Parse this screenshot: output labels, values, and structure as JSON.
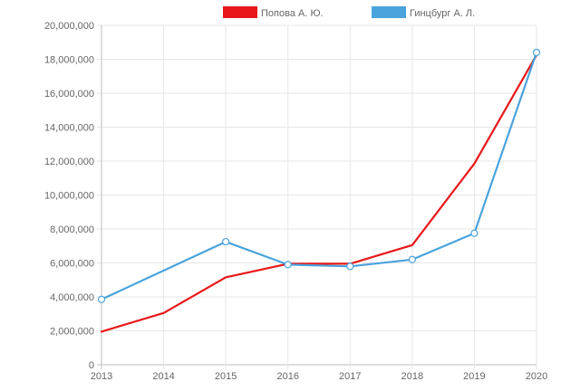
{
  "chart_data": {
    "type": "line",
    "x": [
      "2013",
      "2014",
      "2015",
      "2016",
      "2017",
      "2018",
      "2019",
      "2020"
    ],
    "ylim": [
      0,
      20000000
    ],
    "yticks": [
      "0",
      "2,000,000",
      "4,000,000",
      "6,000,000",
      "8,000,000",
      "10,000,000",
      "12,000,000",
      "14,000,000",
      "16,000,000",
      "18,000,000",
      "20,000,000"
    ],
    "grid": true,
    "legend_position": "top",
    "series": [
      {
        "name": "Попова А. Ю.",
        "color": "#e8171a",
        "values": [
          1950000,
          3050000,
          5150000,
          5950000,
          5950000,
          7050000,
          11850000,
          18250000
        ],
        "markers": false
      },
      {
        "name": "Гинцбург А. Л.",
        "color": "#4aa3dc",
        "values": [
          3850000,
          null,
          7250000,
          5900000,
          5800000,
          6200000,
          7750000,
          18400000
        ],
        "markers": true
      }
    ]
  }
}
